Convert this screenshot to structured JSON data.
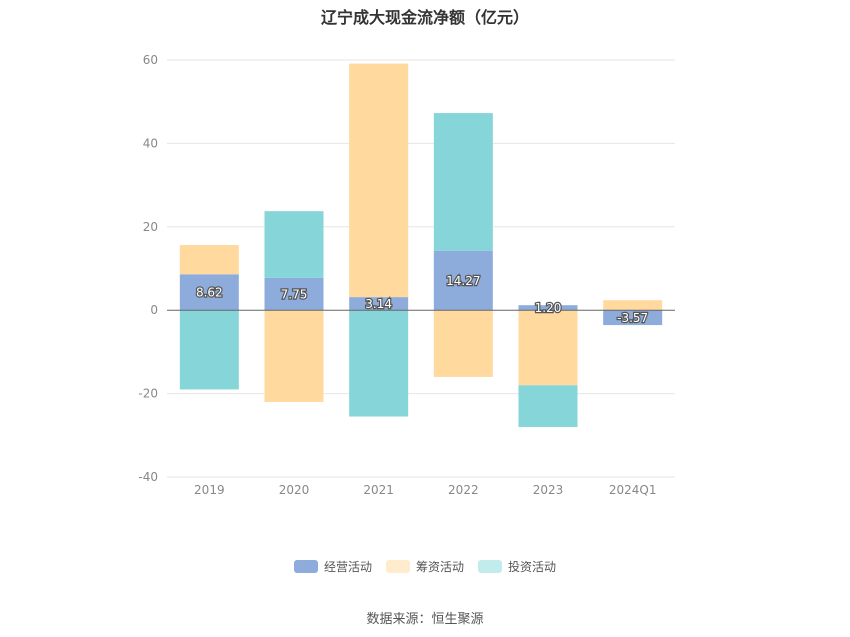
{
  "chart_data": {
    "type": "bar",
    "stacked": true,
    "title": "辽宁成大现金流净额（亿元）",
    "categories": [
      "2019",
      "2020",
      "2021",
      "2022",
      "2023",
      "2024Q1"
    ],
    "series": [
      {
        "name": "经营活动",
        "color": "#8eacdb",
        "values": [
          8.62,
          7.75,
          3.14,
          14.27,
          1.2,
          -3.57
        ],
        "labels": [
          "8.62",
          "7.75",
          "3.14",
          "14.27",
          "1.20",
          "-3.57"
        ]
      },
      {
        "name": "筹资活动",
        "color": "#ffd99e",
        "values": [
          7.0,
          -22.0,
          56.0,
          -16.0,
          -18.0,
          2.4
        ]
      },
      {
        "name": "投资活动",
        "color": "#86d5d8",
        "values": [
          -19.0,
          16.0,
          -25.5,
          33.0,
          -10.0,
          0
        ]
      }
    ],
    "ylim": [
      -40,
      60
    ],
    "yticks": [
      -40,
      -20,
      0,
      20,
      40,
      60
    ],
    "grid": true,
    "legend_position": "bottom"
  },
  "legend_swatch_colors": {
    "经营活动": "#8eacdb",
    "筹资活动": "#ffeccc",
    "投资活动": "#c2ecec"
  },
  "source": "数据来源：恒生聚源"
}
